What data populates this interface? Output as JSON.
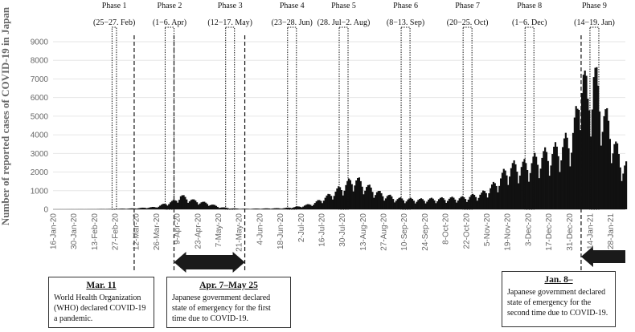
{
  "chart_data": {
    "type": "bar",
    "ylabel": "Number of reported cases of COVID-19 in Japan",
    "ylim": [
      0,
      9000
    ],
    "yticks": [
      0,
      1000,
      2000,
      3000,
      4000,
      5000,
      6000,
      7000,
      8000,
      9000
    ],
    "grid": true,
    "x_start": "2020-01-16",
    "x_end": "2021-02-07",
    "xtick_labels": [
      "16-Jan-20",
      "30-Jan-20",
      "13-Feb-20",
      "27-Feb-20",
      "12-Mar-20",
      "26-Mar-20",
      "9-Apr-20",
      "23-Apr-20",
      "7-May-20",
      "21-May-20",
      "4-Jun-20",
      "18-Jun-20",
      "2-Jul-20",
      "16-Jul-20",
      "30-Jul-20",
      "13-Aug-20",
      "27-Aug-20",
      "10-Sep-20",
      "24-Sep-20",
      "8-Oct-20",
      "22-Oct-20",
      "5-Nov-20",
      "19-Nov-20",
      "3-Dec-20",
      "17-Dec-20",
      "31-Dec-20",
      "14-Jan-21",
      "28-Jan-21"
    ],
    "series": [
      {
        "daily_cases_profile": [
          [
            "2020-01-16",
            0
          ],
          [
            "2020-02-10",
            5
          ],
          [
            "2020-02-25",
            20
          ],
          [
            "2020-03-10",
            45
          ],
          [
            "2020-03-25",
            120
          ],
          [
            "2020-04-01",
            300
          ],
          [
            "2020-04-07",
            450
          ],
          [
            "2020-04-11",
            700
          ],
          [
            "2020-04-20",
            450
          ],
          [
            "2020-04-30",
            300
          ],
          [
            "2020-05-07",
            120
          ],
          [
            "2020-05-15",
            50
          ],
          [
            "2020-05-25",
            25
          ],
          [
            "2020-06-05",
            40
          ],
          [
            "2020-06-20",
            60
          ],
          [
            "2020-07-01",
            150
          ],
          [
            "2020-07-10",
            300
          ],
          [
            "2020-07-20",
            700
          ],
          [
            "2020-07-30",
            1200
          ],
          [
            "2020-08-07",
            1600
          ],
          [
            "2020-08-15",
            1200
          ],
          [
            "2020-08-25",
            800
          ],
          [
            "2020-09-05",
            550
          ],
          [
            "2020-09-20",
            500
          ],
          [
            "2020-10-05",
            550
          ],
          [
            "2020-10-20",
            600
          ],
          [
            "2020-11-01",
            800
          ],
          [
            "2020-11-10",
            1300
          ],
          [
            "2020-11-20",
            2200
          ],
          [
            "2020-12-01",
            2300
          ],
          [
            "2020-12-10",
            2700
          ],
          [
            "2020-12-20",
            3000
          ],
          [
            "2020-12-27",
            3400
          ],
          [
            "2021-01-01",
            3800
          ],
          [
            "2021-01-05",
            5000
          ],
          [
            "2021-01-08",
            7800
          ],
          [
            "2021-01-12",
            5500
          ],
          [
            "2021-01-16",
            7100
          ],
          [
            "2021-01-22",
            5200
          ],
          [
            "2021-01-28",
            4000
          ],
          [
            "2021-02-03",
            2500
          ],
          [
            "2021-02-07",
            2300
          ]
        ]
      }
    ],
    "phases": [
      {
        "label": "Phase 1",
        "dates": "(25−27. Feb)",
        "start": "2020-02-25",
        "end": "2020-02-27"
      },
      {
        "label": "Phase 2",
        "dates": "(1−6. Apr)",
        "start": "2020-04-01",
        "end": "2020-04-06"
      },
      {
        "label": "Phase 3",
        "dates": "(12−17. May)",
        "start": "2020-05-12",
        "end": "2020-05-17"
      },
      {
        "label": "Phase 4",
        "dates": "(23−28. Jun)",
        "start": "2020-06-23",
        "end": "2020-06-28"
      },
      {
        "label": "Phase 5",
        "dates": "(28. Jul−2. Aug)",
        "start": "2020-07-28",
        "end": "2020-08-02"
      },
      {
        "label": "Phase 6",
        "dates": "(8−13. Sep)",
        "start": "2020-09-08",
        "end": "2020-09-13"
      },
      {
        "label": "Phase 7",
        "dates": "(20−25. Oct)",
        "start": "2020-10-20",
        "end": "2020-10-25"
      },
      {
        "label": "Phase 8",
        "dates": "(1−6. Dec)",
        "start": "2020-12-01",
        "end": "2020-12-06"
      },
      {
        "label": "Phase 9",
        "dates": "(14−19. Jan)",
        "start": "2021-01-14",
        "end": "2021-01-19"
      }
    ],
    "event_lines": [
      "2020-03-11",
      "2020-04-07",
      "2020-05-25",
      "2021-01-08"
    ],
    "arrows": [
      {
        "direction": "both",
        "start": "2020-04-07",
        "end": "2020-05-25"
      },
      {
        "direction": "left",
        "start": "2021-01-08",
        "end": "2021-02-07"
      }
    ]
  },
  "annotations": [
    {
      "heading": "Mar. 11",
      "body": "World Health Organization (WHO) declared COVID-19 a pandemic."
    },
    {
      "heading": "Apr. 7–May 25",
      "body": "Japanese government declared state of emergency for the first time due to COVID-19."
    },
    {
      "heading": "Jan. 8–",
      "body": "Japanese government declared state of emergency for the second time due to COVID-19."
    }
  ]
}
